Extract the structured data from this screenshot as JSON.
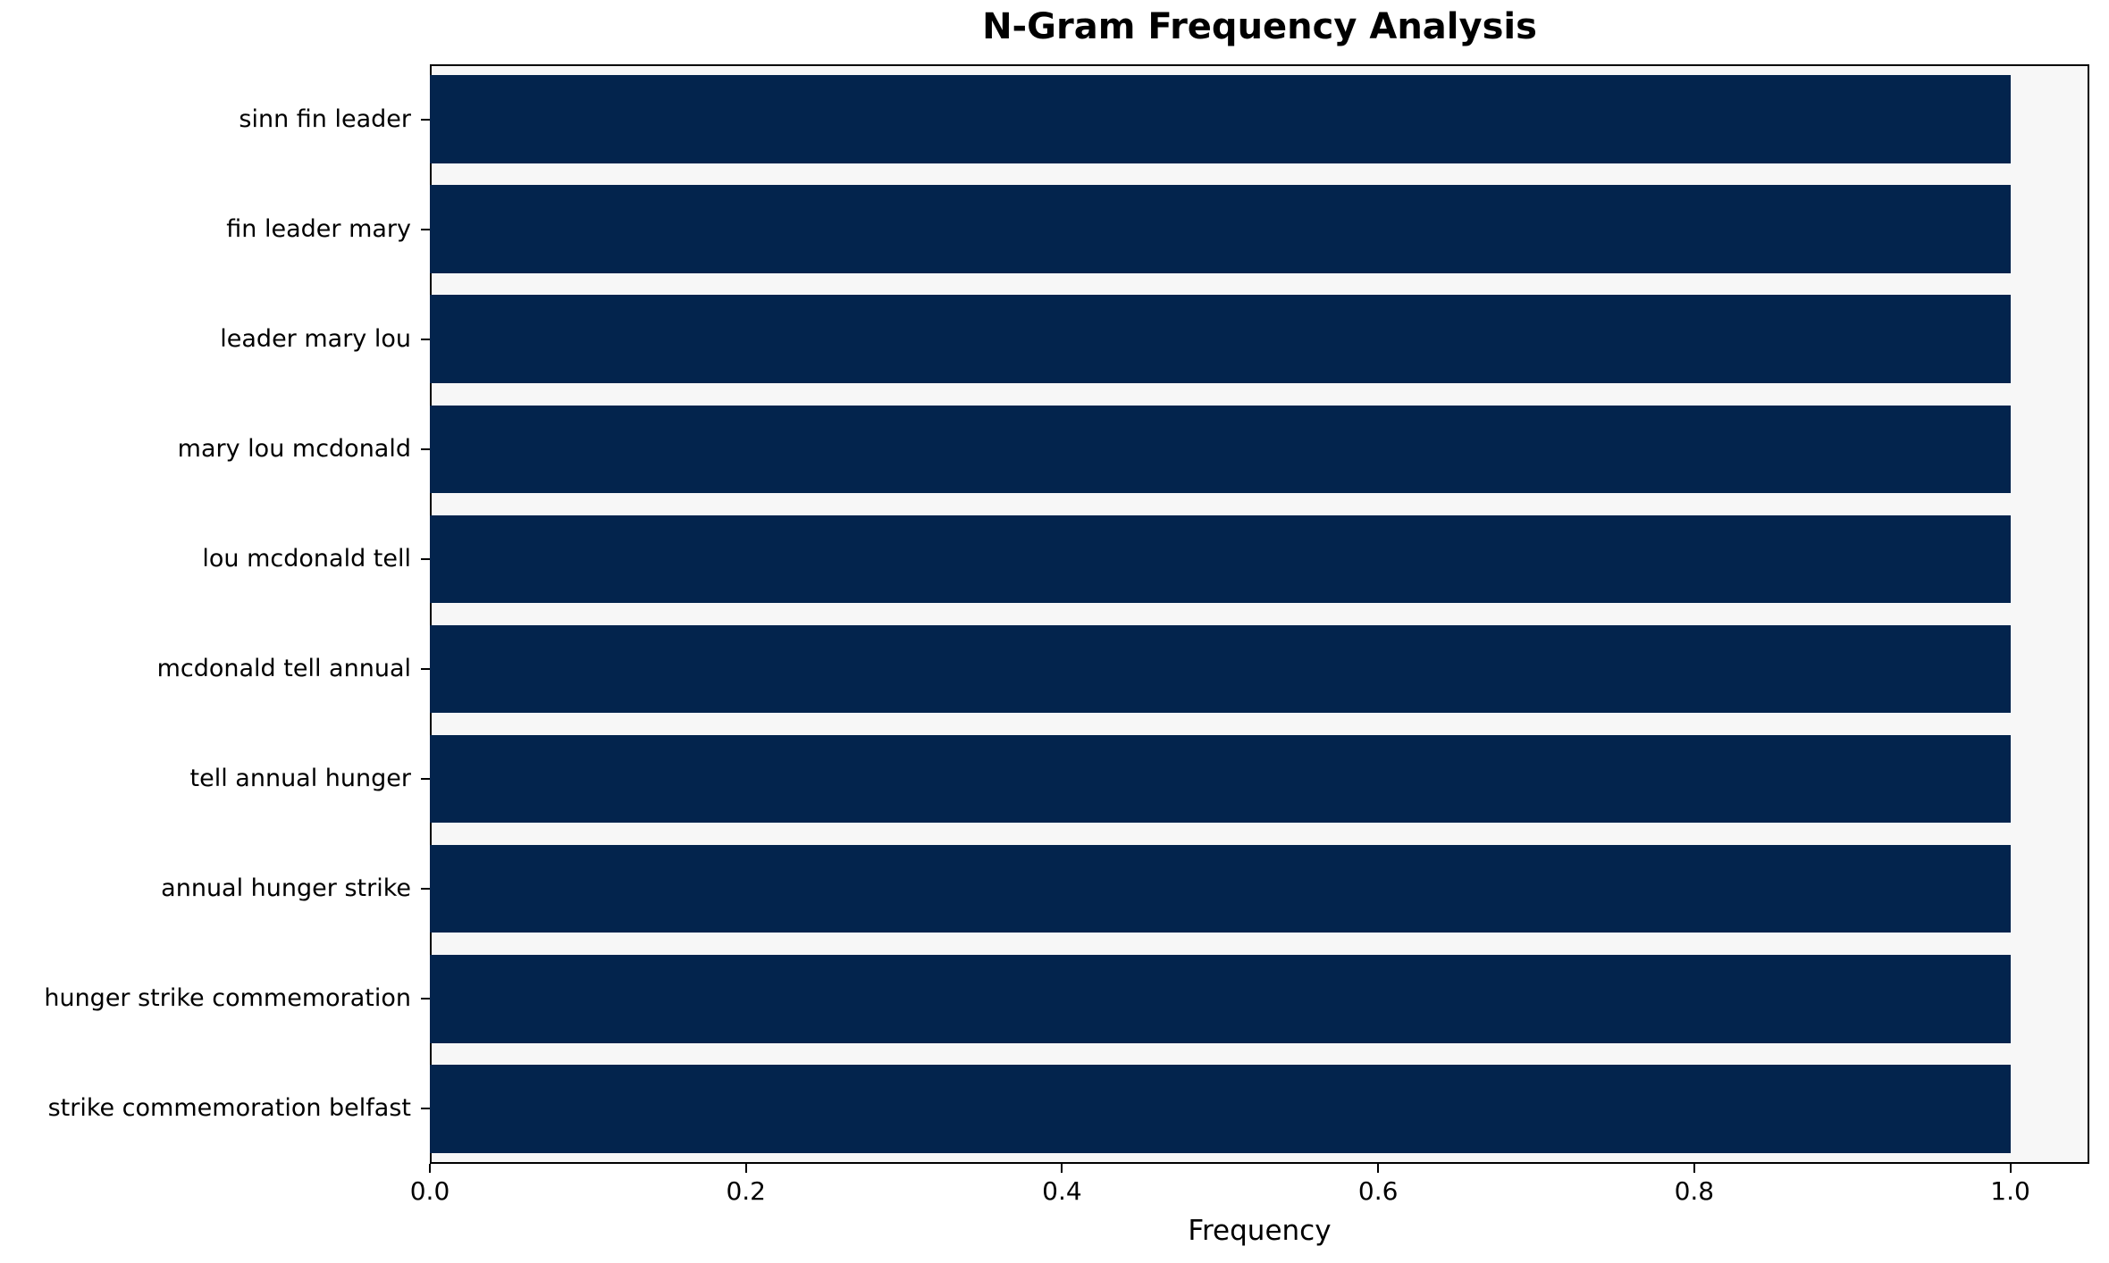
{
  "chart_data": {
    "type": "bar",
    "orientation": "horizontal",
    "title": "N-Gram Frequency Analysis",
    "xlabel": "Frequency",
    "ylabel": "",
    "categories": [
      "sinn fin leader",
      "fin leader mary",
      "leader mary lou",
      "mary lou mcdonald",
      "lou mcdonald tell",
      "mcdonald tell annual",
      "tell annual hunger",
      "annual hunger strike",
      "hunger strike commemoration",
      "strike commemoration belfast"
    ],
    "values": [
      1.0,
      1.0,
      1.0,
      1.0,
      1.0,
      1.0,
      1.0,
      1.0,
      1.0,
      1.0
    ],
    "xticks": [
      0.0,
      0.2,
      0.4,
      0.6,
      0.8,
      1.0
    ],
    "xlim": [
      0,
      1.05
    ],
    "bar_color": "#03244d",
    "plot_bg": "#f7f7f7",
    "spine_color": "#000000",
    "legend": "none",
    "grid": "off"
  }
}
